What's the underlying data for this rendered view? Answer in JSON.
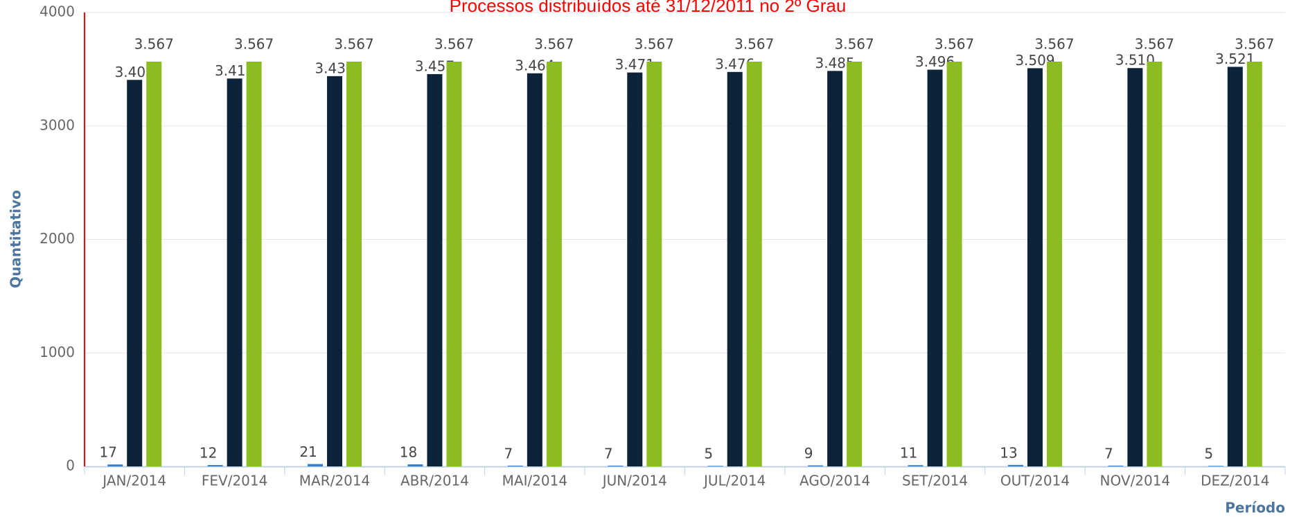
{
  "chart_data": {
    "type": "bar",
    "title": "Processos distribuídos até 31/12/2011 no 2º Grau",
    "y_label": "Quantitativo",
    "x_label": "Período",
    "categories": [
      "JAN/2014",
      "FEV/2014",
      "MAR/2014",
      "ABR/2014",
      "MAI/2014",
      "JUN/2014",
      "JUL/2014",
      "AGO/2014",
      "SET/2014",
      "OUT/2014",
      "NOV/2014",
      "DEZ/2014"
    ],
    "series": [
      {
        "color": "#2f7ed8",
        "values": [
          17,
          12,
          21,
          18,
          7,
          7,
          5,
          9,
          11,
          13,
          7,
          5
        ]
      },
      {
        "color": "#0d233a",
        "values": [
          3406,
          3418,
          3439,
          3457,
          3464,
          3471,
          3476,
          3485,
          3496,
          3509,
          3510,
          3521
        ],
        "value_labels": [
          "3.406",
          "3.418",
          "3.439",
          "3.457",
          "3.464",
          "3.471",
          "3.476",
          "3.485",
          "3.496",
          "3.509",
          "3.510",
          "3.521"
        ]
      },
      {
        "color": "#8bbc21",
        "values": [
          3567,
          3567,
          3567,
          3567,
          3567,
          3567,
          3567,
          3567,
          3567,
          3567,
          3567,
          3567
        ],
        "value_labels": [
          "3.567",
          "3.567",
          "3.567",
          "3.567",
          "3.567",
          "3.567",
          "3.567",
          "3.567",
          "3.567",
          "3.567",
          "3.567",
          "3.567"
        ]
      }
    ],
    "ylim": [
      0,
      4000
    ],
    "yticks": [
      0,
      1000,
      2000,
      3000,
      4000
    ],
    "grid": true
  }
}
